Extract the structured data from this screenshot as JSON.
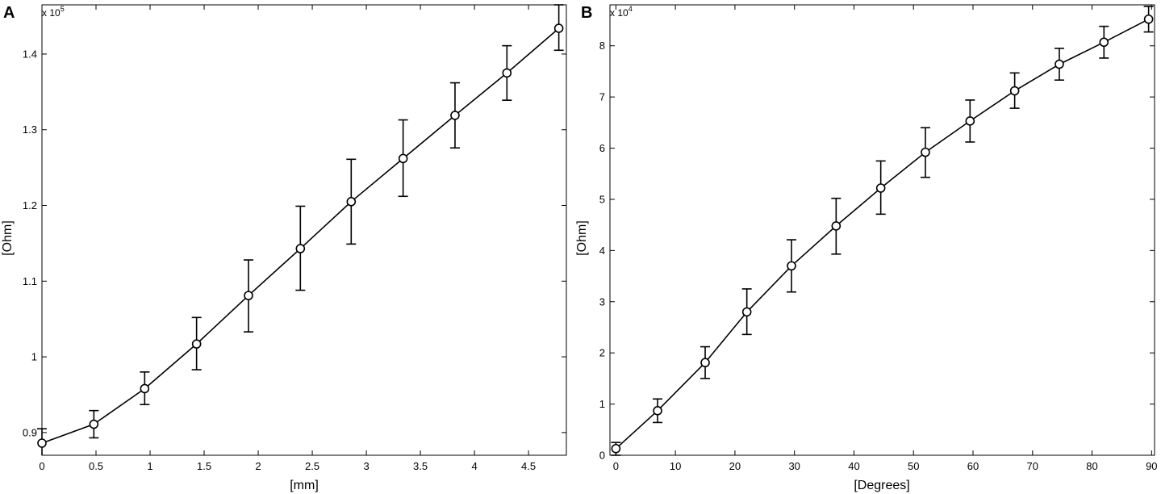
{
  "chart_data": [
    {
      "panel": "A",
      "type": "line",
      "errorbars": true,
      "marker": "circle",
      "xlabel": "[mm]",
      "ylabel": "[Ohm]",
      "y_multiplier": "x 10",
      "y_multiplier_exp": "5",
      "xlim": [
        0,
        4.85
      ],
      "ylim": [
        0.87,
        1.465
      ],
      "xticks": [
        "0",
        "0.5",
        "1",
        "1.5",
        "2",
        "2.5",
        "3",
        "3.5",
        "4",
        "4.5"
      ],
      "xtick_values": [
        0,
        0.5,
        1,
        1.5,
        2,
        2.5,
        3,
        3.5,
        4,
        4.5
      ],
      "yticks": [
        "0.9",
        "1",
        "1.1",
        "1.2",
        "1.3",
        "1.4"
      ],
      "ytick_values": [
        0.9,
        1.0,
        1.1,
        1.2,
        1.3,
        1.4
      ],
      "grid": false,
      "series": [
        {
          "x": [
            0,
            0.48,
            0.95,
            1.43,
            1.91,
            2.39,
            2.86,
            3.34,
            3.82,
            4.3,
            4.78
          ],
          "y": [
            0.886,
            0.911,
            0.958,
            1.017,
            1.081,
            1.143,
            1.205,
            1.262,
            1.319,
            1.375,
            1.434
          ],
          "err_low": [
            0.867,
            0.893,
            0.937,
            0.983,
            1.033,
            1.088,
            1.149,
            1.212,
            1.276,
            1.339,
            1.405
          ],
          "err_high": [
            0.905,
            0.929,
            0.98,
            1.052,
            1.128,
            1.199,
            1.261,
            1.313,
            1.362,
            1.411,
            1.465
          ]
        }
      ]
    },
    {
      "panel": "B",
      "type": "line",
      "errorbars": true,
      "marker": "circle",
      "xlabel": "[Degrees]",
      "ylabel": "[Ohm]",
      "y_multiplier": "x 10",
      "y_multiplier_exp": "4",
      "xlim": [
        -1,
        90.5
      ],
      "ylim": [
        0,
        8.8
      ],
      "xticks": [
        "0",
        "10",
        "20",
        "30",
        "40",
        "50",
        "60",
        "70",
        "80",
        "90"
      ],
      "xtick_values": [
        0,
        10,
        20,
        30,
        40,
        50,
        60,
        70,
        80,
        90
      ],
      "yticks": [
        "0",
        "1",
        "2",
        "3",
        "4",
        "5",
        "6",
        "7",
        "8"
      ],
      "ytick_values": [
        0,
        1,
        2,
        3,
        4,
        5,
        6,
        7,
        8
      ],
      "grid": false,
      "series": [
        {
          "x": [
            0,
            7,
            15,
            22,
            29.5,
            37,
            44.5,
            52,
            59.5,
            67,
            74.5,
            82,
            89.5
          ],
          "y": [
            0.13,
            0.87,
            1.81,
            2.8,
            3.7,
            4.48,
            5.22,
            5.92,
            6.53,
            7.12,
            7.64,
            8.07,
            8.52
          ],
          "err_low": [
            0.0,
            0.64,
            1.5,
            2.36,
            3.19,
            3.93,
            4.71,
            5.43,
            6.12,
            6.78,
            7.33,
            7.76,
            8.27
          ],
          "err_high": [
            0.25,
            1.1,
            2.12,
            3.25,
            4.21,
            5.02,
            5.75,
            6.4,
            6.94,
            7.47,
            7.95,
            8.38,
            8.77
          ]
        }
      ]
    }
  ]
}
